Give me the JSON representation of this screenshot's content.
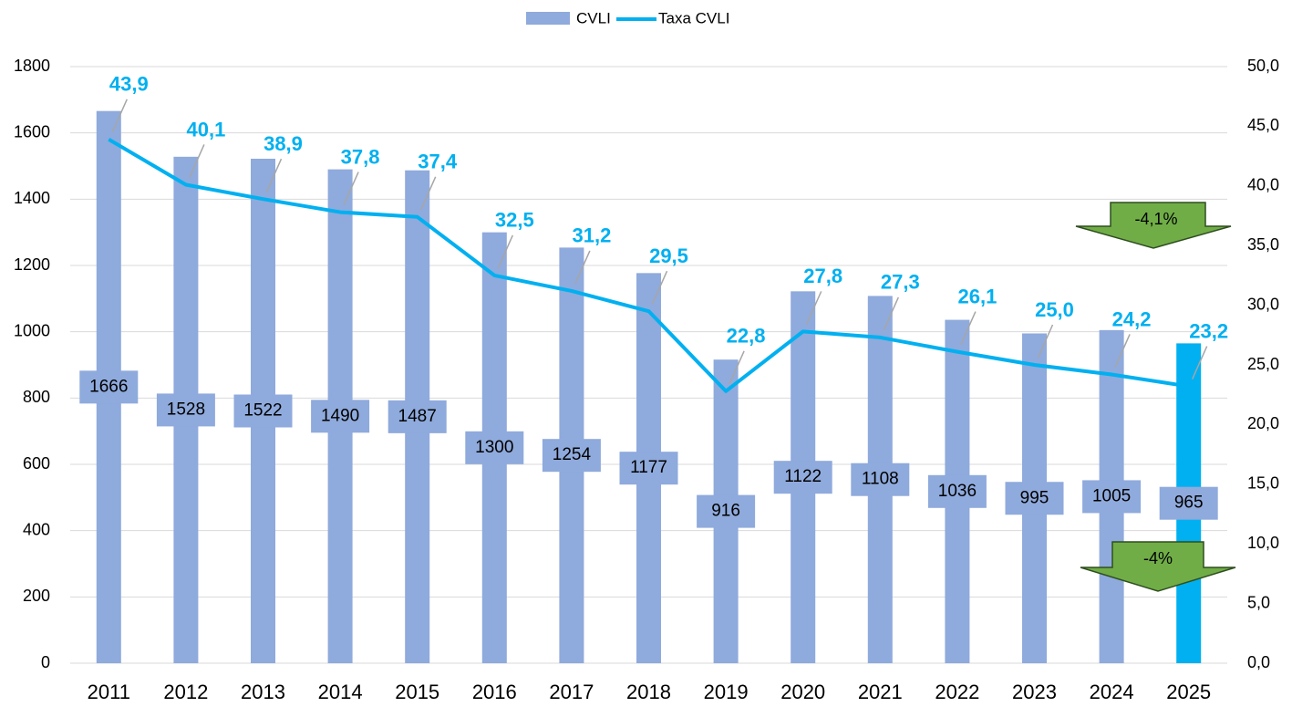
{
  "chart_data": {
    "type": "bar",
    "categories": [
      "2011",
      "2012",
      "2013",
      "2014",
      "2015",
      "2016",
      "2017",
      "2018",
      "2019",
      "2020",
      "2021",
      "2022",
      "2023",
      "2024",
      "2025"
    ],
    "series": [
      {
        "name": "CVLI",
        "type": "bar",
        "color": "#8faadc",
        "colors": [
          "#8faadc",
          "#8faadc",
          "#8faadc",
          "#8faadc",
          "#8faadc",
          "#8faadc",
          "#8faadc",
          "#8faadc",
          "#8faadc",
          "#8faadc",
          "#8faadc",
          "#8faadc",
          "#8faadc",
          "#8faadc",
          "#00b0f0"
        ],
        "values": [
          1666,
          1528,
          1522,
          1490,
          1487,
          1300,
          1254,
          1177,
          916,
          1122,
          1108,
          1036,
          995,
          1005,
          965
        ]
      },
      {
        "name": "Taxa CVLI",
        "type": "line",
        "axis": "y2",
        "color": "#00b0f0",
        "values": [
          43.9,
          40.1,
          38.9,
          37.8,
          37.4,
          32.5,
          31.2,
          29.5,
          22.8,
          27.8,
          27.3,
          26.1,
          25.0,
          24.2,
          23.2
        ],
        "value_labels": [
          "43,9",
          "40,1",
          "38,9",
          "37,8",
          "37,4",
          "32,5",
          "31,2",
          "29,5",
          "22,8",
          "27,8",
          "27,3",
          "26,1",
          "25,0",
          "24,2",
          "23,2"
        ]
      }
    ],
    "ylim": [
      0,
      1800
    ],
    "yticks": [
      0,
      200,
      400,
      600,
      800,
      1000,
      1200,
      1400,
      1600,
      1800
    ],
    "y2lim": [
      0,
      50
    ],
    "y2ticks": [
      {
        "value": 0,
        "label": "0,0"
      },
      {
        "value": 5,
        "label": "5,0"
      },
      {
        "value": 10,
        "label": "10,0"
      },
      {
        "value": 15,
        "label": "15,0"
      },
      {
        "value": 20,
        "label": "20,0"
      },
      {
        "value": 25,
        "label": "25,0"
      },
      {
        "value": 30,
        "label": "30,0"
      },
      {
        "value": 35,
        "label": "35,0"
      },
      {
        "value": 40,
        "label": "40,0"
      },
      {
        "value": 45,
        "label": "45,0"
      },
      {
        "value": 50,
        "label": "50,0"
      }
    ],
    "grid": true,
    "legend": "top",
    "annotations": [
      "-4,1%",
      "-4%"
    ]
  }
}
